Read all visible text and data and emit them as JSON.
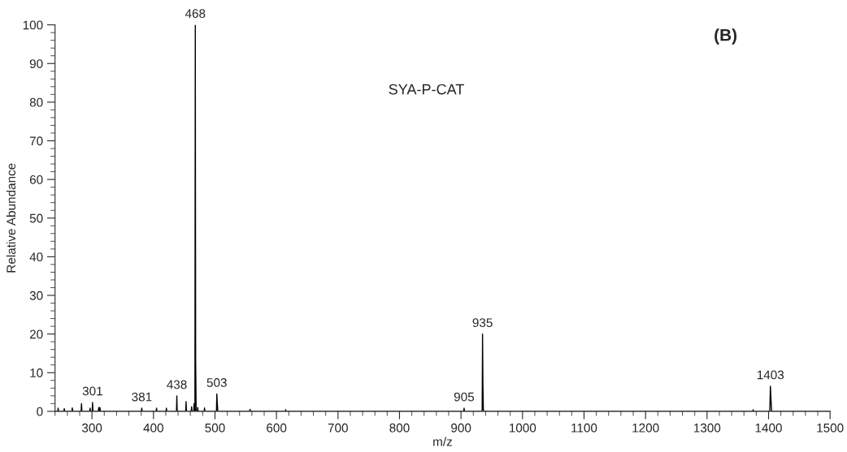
{
  "chart_data": {
    "type": "line",
    "xlabel": "m/z",
    "ylabel": "Relative Abundance",
    "series": [
      {
        "color": "#000000",
        "x": [
          240,
          244.4,
          245,
          245.6,
          254.4,
          255,
          255.6,
          267.4,
          268,
          268.6,
          282.4,
          283,
          283.6,
          296.4,
          297,
          297.6,
          300.4,
          301,
          301.6,
          310.4,
          311,
          311.6,
          312.4,
          313,
          313.6,
          380.4,
          381,
          381.6,
          404.4,
          405,
          405.6,
          420.4,
          421,
          421.6,
          437.4,
          438,
          438.6,
          452.4,
          453,
          453.6,
          461.4,
          462,
          462.6,
          465.4,
          466,
          466.6,
          467.4,
          468,
          468.6,
          469.4,
          471.4,
          472,
          472.6,
          482.4,
          483,
          483.6,
          502.4,
          503,
          503.8,
          504.6,
          505.4,
          556.4,
          557,
          557.6,
          614.4,
          615,
          615.6,
          904.4,
          905,
          905.6,
          934.4,
          935,
          935.6,
          936.4,
          1374.4,
          1375,
          1375.6,
          1402,
          1403,
          1404,
          1405,
          1500
        ],
        "values": [
          0,
          0,
          0.8,
          0,
          0,
          0.7,
          0,
          0,
          0.9,
          0,
          0,
          2.0,
          0,
          0,
          0.8,
          0,
          0,
          2.3,
          0,
          0,
          1.0,
          0,
          0,
          1.0,
          0,
          0,
          0.8,
          0,
          0,
          0.8,
          0,
          0,
          0.8,
          0,
          0,
          4.0,
          0,
          0,
          2.5,
          0,
          0,
          1.2,
          0,
          0,
          2.0,
          0,
          0,
          100,
          13,
          0,
          0,
          1.0,
          0,
          0,
          0.9,
          0,
          0,
          4.5,
          2.0,
          0,
          0,
          0,
          0.5,
          0,
          0,
          0.4,
          0,
          0,
          0.8,
          0,
          0,
          20,
          7,
          0,
          0,
          0.4,
          0,
          0,
          6.5,
          3.0,
          0,
          0
        ]
      }
    ],
    "xlim": [
      240,
      1500
    ],
    "ylim": [
      0,
      100
    ],
    "xticks": [
      300,
      400,
      500,
      600,
      700,
      800,
      900,
      1000,
      1100,
      1200,
      1300,
      1400,
      1500,
      {
        "value": 240,
        "label": null
      },
      {
        "value": 260,
        "label": null
      },
      {
        "value": 280,
        "label": null
      },
      {
        "value": 320,
        "label": null
      },
      {
        "value": 340,
        "label": null
      },
      {
        "value": 360,
        "label": null
      },
      {
        "value": 380,
        "label": null
      },
      {
        "value": 420,
        "label": null
      },
      {
        "value": 440,
        "label": null
      },
      {
        "value": 460,
        "label": null
      },
      {
        "value": 480,
        "label": null
      },
      {
        "value": 520,
        "label": null
      },
      {
        "value": 540,
        "label": null
      },
      {
        "value": 560,
        "label": null
      },
      {
        "value": 580,
        "label": null
      },
      {
        "value": 620,
        "label": null
      },
      {
        "value": 640,
        "label": null
      },
      {
        "value": 660,
        "label": null
      },
      {
        "value": 680,
        "label": null
      },
      {
        "value": 720,
        "label": null
      },
      {
        "value": 740,
        "label": null
      },
      {
        "value": 760,
        "label": null
      },
      {
        "value": 780,
        "label": null
      },
      {
        "value": 820,
        "label": null
      },
      {
        "value": 840,
        "label": null
      },
      {
        "value": 860,
        "label": null
      },
      {
        "value": 880,
        "label": null
      },
      {
        "value": 920,
        "label": null
      },
      {
        "value": 940,
        "label": null
      },
      {
        "value": 960,
        "label": null
      },
      {
        "value": 980,
        "label": null
      },
      {
        "value": 1020,
        "label": null
      },
      {
        "value": 1040,
        "label": null
      },
      {
        "value": 1060,
        "label": null
      },
      {
        "value": 1080,
        "label": null
      },
      {
        "value": 1120,
        "label": null
      },
      {
        "value": 1140,
        "label": null
      },
      {
        "value": 1160,
        "label": null
      },
      {
        "value": 1180,
        "label": null
      },
      {
        "value": 1220,
        "label": null
      },
      {
        "value": 1240,
        "label": null
      },
      {
        "value": 1260,
        "label": null
      },
      {
        "value": 1280,
        "label": null
      },
      {
        "value": 1320,
        "label": null
      },
      {
        "value": 1340,
        "label": null
      },
      {
        "value": 1360,
        "label": null
      },
      {
        "value": 1380,
        "label": null
      },
      {
        "value": 1420,
        "label": null
      },
      {
        "value": 1440,
        "label": null
      },
      {
        "value": 1460,
        "label": null
      },
      {
        "value": 1480,
        "label": null
      }
    ],
    "yticks": [
      0,
      10,
      20,
      30,
      40,
      50,
      60,
      70,
      80,
      90,
      100,
      {
        "value": 2,
        "label": null
      },
      {
        "value": 4,
        "label": null
      },
      {
        "value": 6,
        "label": null
      },
      {
        "value": 8,
        "label": null
      },
      {
        "value": 12,
        "label": null
      },
      {
        "value": 14,
        "label": null
      },
      {
        "value": 16,
        "label": null
      },
      {
        "value": 18,
        "label": null
      },
      {
        "value": 22,
        "label": null
      },
      {
        "value": 24,
        "label": null
      },
      {
        "value": 26,
        "label": null
      },
      {
        "value": 28,
        "label": null
      },
      {
        "value": 32,
        "label": null
      },
      {
        "value": 34,
        "label": null
      },
      {
        "value": 36,
        "label": null
      },
      {
        "value": 38,
        "label": null
      },
      {
        "value": 42,
        "label": null
      },
      {
        "value": 44,
        "label": null
      },
      {
        "value": 46,
        "label": null
      },
      {
        "value": 48,
        "label": null
      },
      {
        "value": 52,
        "label": null
      },
      {
        "value": 54,
        "label": null
      },
      {
        "value": 56,
        "label": null
      },
      {
        "value": 58,
        "label": null
      },
      {
        "value": 62,
        "label": null
      },
      {
        "value": 64,
        "label": null
      },
      {
        "value": 66,
        "label": null
      },
      {
        "value": 68,
        "label": null
      },
      {
        "value": 72,
        "label": null
      },
      {
        "value": 74,
        "label": null
      },
      {
        "value": 76,
        "label": null
      },
      {
        "value": 78,
        "label": null
      },
      {
        "value": 82,
        "label": null
      },
      {
        "value": 84,
        "label": null
      },
      {
        "value": 86,
        "label": null
      },
      {
        "value": 88,
        "label": null
      },
      {
        "value": 92,
        "label": null
      },
      {
        "value": 94,
        "label": null
      },
      {
        "value": 96,
        "label": null
      },
      {
        "value": 98,
        "label": null
      }
    ],
    "grid": false,
    "annotations": [
      "(B)",
      "SYA-P-CAT",
      {
        "text": "301",
        "x": 301,
        "y": 2.3
      },
      {
        "text": "381",
        "x": 381,
        "y": 0.8
      },
      {
        "text": "438",
        "x": 438,
        "y": 4.0
      },
      {
        "text": "468",
        "x": 468,
        "y": 100
      },
      {
        "text": "503",
        "x": 503,
        "y": 4.5
      },
      {
        "text": "905",
        "x": 905,
        "y": 0.8
      },
      {
        "text": "935",
        "x": 935,
        "y": 20
      },
      {
        "text": "1403",
        "x": 1403,
        "y": 6.5
      }
    ]
  }
}
